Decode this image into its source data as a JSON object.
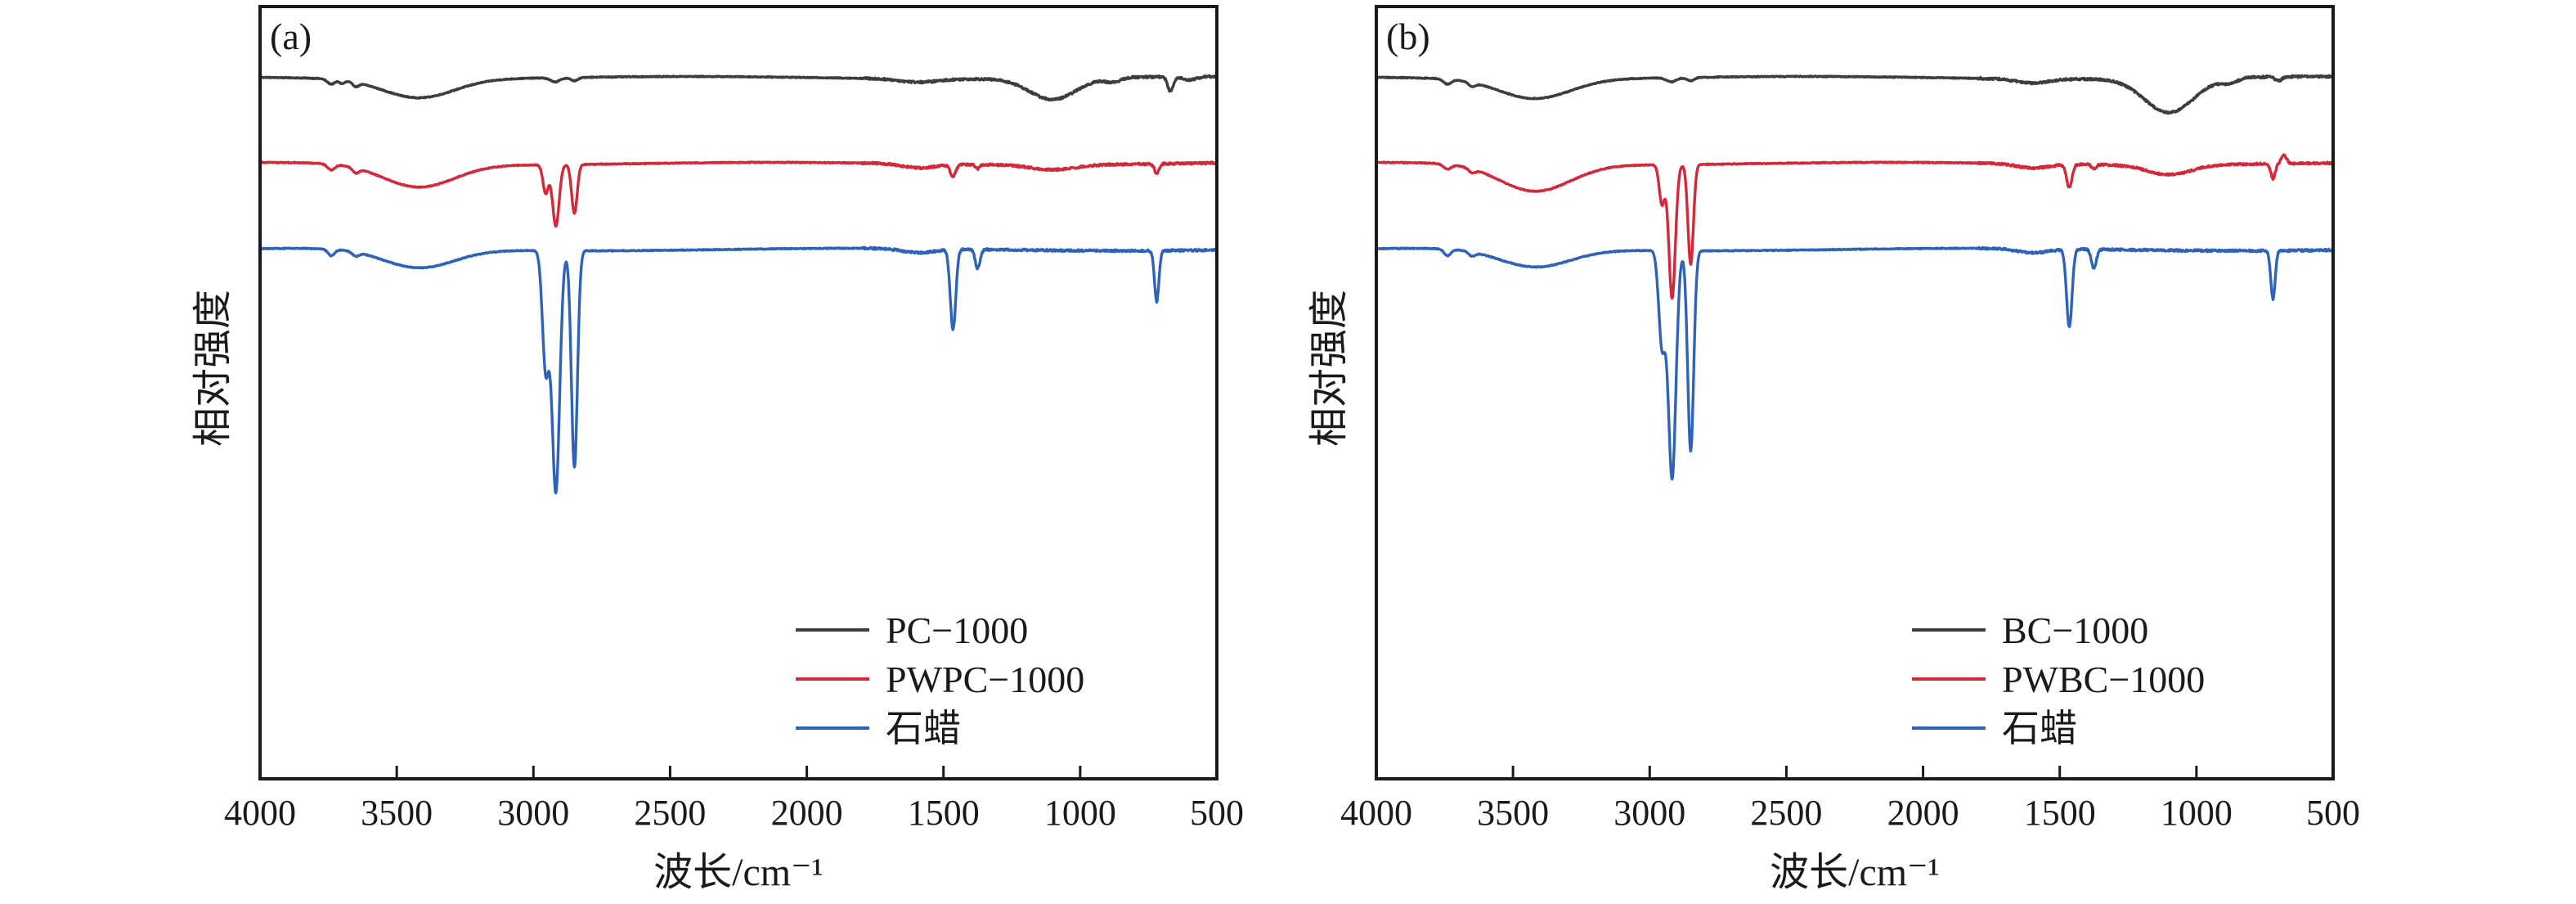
{
  "chart_data": [
    {
      "type": "line",
      "panel_label": "(a)",
      "xlabel": "波长/cm⁻¹",
      "ylabel": "相对强度",
      "xlim": [
        4000,
        500
      ],
      "x_reversed": true,
      "x_ticks": [
        4000,
        3500,
        3000,
        2500,
        2000,
        1500,
        1000,
        500
      ],
      "y_ticks_shown": false,
      "legend_position": "bottom-right",
      "series": [
        {
          "name": "PC−1000",
          "color": "#3d3d3d",
          "offset": 0,
          "features": [
            {
              "x": 3740,
              "depth": 0.06,
              "width": 14
            },
            {
              "x": 3700,
              "depth": 0.04,
              "width": 10
            },
            {
              "x": 3650,
              "depth": 0.05,
              "width": 12
            },
            {
              "x": 3420,
              "depth": 0.23,
              "width": 130
            },
            {
              "x": 2920,
              "depth": 0.05,
              "width": 18
            },
            {
              "x": 2850,
              "depth": 0.04,
              "width": 14
            },
            {
              "x": 1590,
              "depth": 0.04,
              "width": 70
            },
            {
              "x": 1100,
              "depth": 0.26,
              "width": 85
            },
            {
              "x": 880,
              "depth": 0.05,
              "width": 30
            },
            {
              "x": 670,
              "depth": 0.18,
              "width": 10
            },
            {
              "x": 600,
              "depth": 0.04,
              "width": 25
            }
          ]
        },
        {
          "name": "PWPC−1000",
          "color": "#d6283b",
          "offset": 0.55,
          "features": [
            {
              "x": 3740,
              "depth": 0.07,
              "width": 14
            },
            {
              "x": 3650,
              "depth": 0.06,
              "width": 12
            },
            {
              "x": 3420,
              "depth": 0.28,
              "width": 130
            },
            {
              "x": 2955,
              "depth": 0.35,
              "width": 10
            },
            {
              "x": 2918,
              "depth": 0.75,
              "width": 12
            },
            {
              "x": 2850,
              "depth": 0.6,
              "width": 10
            },
            {
              "x": 1590,
              "depth": 0.05,
              "width": 60
            },
            {
              "x": 1465,
              "depth": 0.14,
              "width": 10
            },
            {
              "x": 1375,
              "depth": 0.05,
              "width": 8
            },
            {
              "x": 1100,
              "depth": 0.06,
              "width": 80
            },
            {
              "x": 720,
              "depth": 0.12,
              "width": 8
            }
          ]
        },
        {
          "name": "石蜡",
          "color": "#2f63b8",
          "offset": 1.1,
          "features": [
            {
              "x": 3740,
              "depth": 0.08,
              "width": 12
            },
            {
              "x": 3650,
              "depth": 0.05,
              "width": 12
            },
            {
              "x": 3420,
              "depth": 0.23,
              "width": 130
            },
            {
              "x": 2955,
              "depth": 1.45,
              "width": 12
            },
            {
              "x": 2918,
              "depth": 2.95,
              "width": 14
            },
            {
              "x": 2850,
              "depth": 2.65,
              "width": 11
            },
            {
              "x": 1590,
              "depth": 0.05,
              "width": 60
            },
            {
              "x": 1465,
              "depth": 0.98,
              "width": 10
            },
            {
              "x": 1375,
              "depth": 0.23,
              "width": 9
            },
            {
              "x": 720,
              "depth": 0.62,
              "width": 8
            }
          ]
        }
      ]
    },
    {
      "type": "line",
      "panel_label": "(b)",
      "xlabel": "波长/cm⁻¹",
      "ylabel": "相对强度",
      "xlim": [
        4000,
        500
      ],
      "x_reversed": true,
      "x_ticks": [
        4000,
        3500,
        3000,
        2500,
        2000,
        1500,
        1000,
        500
      ],
      "y_ticks_shown": false,
      "legend_position": "bottom-right",
      "series": [
        {
          "name": "BC−1000",
          "color": "#3d3d3d",
          "offset": 0,
          "features": [
            {
              "x": 3740,
              "depth": 0.06,
              "width": 14
            },
            {
              "x": 3650,
              "depth": 0.05,
              "width": 12
            },
            {
              "x": 3420,
              "depth": 0.24,
              "width": 130
            },
            {
              "x": 2920,
              "depth": 0.05,
              "width": 18
            },
            {
              "x": 2850,
              "depth": 0.04,
              "width": 14
            },
            {
              "x": 1600,
              "depth": 0.05,
              "width": 60
            },
            {
              "x": 1100,
              "depth": 0.42,
              "width": 90
            },
            {
              "x": 880,
              "depth": 0.06,
              "width": 30
            },
            {
              "x": 700,
              "depth": 0.05,
              "width": 12
            }
          ]
        },
        {
          "name": "PWBC−1000",
          "color": "#d6283b",
          "offset": 0.55,
          "features": [
            {
              "x": 3740,
              "depth": 0.06,
              "width": 14
            },
            {
              "x": 3650,
              "depth": 0.05,
              "width": 12
            },
            {
              "x": 3420,
              "depth": 0.33,
              "width": 130
            },
            {
              "x": 2955,
              "depth": 0.48,
              "width": 10
            },
            {
              "x": 2918,
              "depth": 1.63,
              "width": 12
            },
            {
              "x": 2850,
              "depth": 1.22,
              "width": 10
            },
            {
              "x": 1600,
              "depth": 0.05,
              "width": 60
            },
            {
              "x": 1465,
              "depth": 0.28,
              "width": 10
            },
            {
              "x": 1375,
              "depth": 0.06,
              "width": 8
            },
            {
              "x": 1100,
              "depth": 0.12,
              "width": 80
            },
            {
              "x": 720,
              "depth": 0.18,
              "width": 8
            },
            {
              "x": 680,
              "depth": -0.1,
              "width": 10
            }
          ]
        },
        {
          "name": "石蜡",
          "color": "#2f63b8",
          "offset": 1.1,
          "features": [
            {
              "x": 3740,
              "depth": 0.08,
              "width": 12
            },
            {
              "x": 3650,
              "depth": 0.05,
              "width": 12
            },
            {
              "x": 3420,
              "depth": 0.22,
              "width": 130
            },
            {
              "x": 2955,
              "depth": 1.15,
              "width": 12
            },
            {
              "x": 2918,
              "depth": 2.78,
              "width": 14
            },
            {
              "x": 2850,
              "depth": 2.45,
              "width": 11
            },
            {
              "x": 1600,
              "depth": 0.05,
              "width": 60
            },
            {
              "x": 1465,
              "depth": 0.95,
              "width": 10
            },
            {
              "x": 1375,
              "depth": 0.23,
              "width": 9
            },
            {
              "x": 720,
              "depth": 0.59,
              "width": 8
            }
          ]
        }
      ]
    }
  ]
}
